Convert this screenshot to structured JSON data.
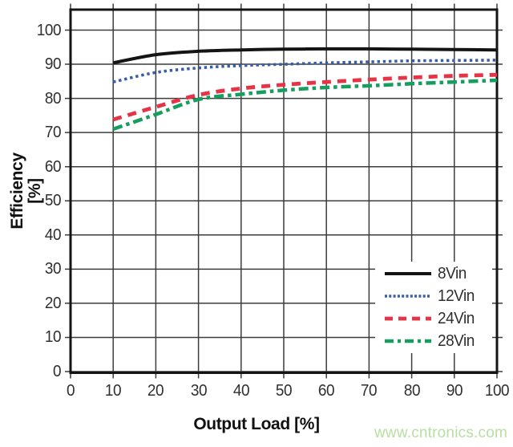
{
  "chart_data": {
    "type": "line",
    "title": "",
    "xlabel": "Output Load [%]",
    "ylabel": "Efficiency [%]",
    "xlim": [
      0,
      100
    ],
    "ylim": [
      0,
      100
    ],
    "xticks": [
      0,
      10,
      20,
      30,
      40,
      50,
      60,
      70,
      80,
      90,
      100
    ],
    "yticks": [
      0,
      10,
      20,
      30,
      40,
      50,
      60,
      70,
      80,
      90,
      100
    ],
    "grid": true,
    "legend_position": "inside-bottom-right",
    "x": [
      10,
      20,
      30,
      40,
      50,
      60,
      70,
      80,
      90,
      100
    ],
    "series": [
      {
        "name": "8Vin",
        "color": "#141414",
        "style": "solid",
        "values": [
          90.4,
          92.8,
          93.8,
          94.2,
          94.4,
          94.5,
          94.5,
          94.4,
          94.3,
          94.2
        ]
      },
      {
        "name": "12Vin",
        "color": "#3a5da8",
        "style": "dotted",
        "values": [
          84.8,
          87.6,
          88.9,
          89.6,
          90.0,
          90.4,
          90.7,
          91.0,
          91.1,
          91.2
        ]
      },
      {
        "name": "24Vin",
        "color": "#e73346",
        "style": "dashed",
        "values": [
          73.8,
          77.5,
          81.0,
          82.9,
          84.0,
          84.8,
          85.5,
          86.1,
          86.6,
          86.9
        ]
      },
      {
        "name": "28Vin",
        "color": "#159e5d",
        "style": "dashdot",
        "values": [
          71.0,
          75.3,
          79.7,
          81.2,
          82.4,
          83.2,
          83.7,
          84.3,
          84.8,
          85.3
        ]
      }
    ]
  },
  "watermark": {
    "text": "www.cntronics.com",
    "color": "#b7dfa3"
  },
  "colors": {
    "grid": "#3c3c3c",
    "frame": "#141414",
    "tick_text": "#303030"
  }
}
